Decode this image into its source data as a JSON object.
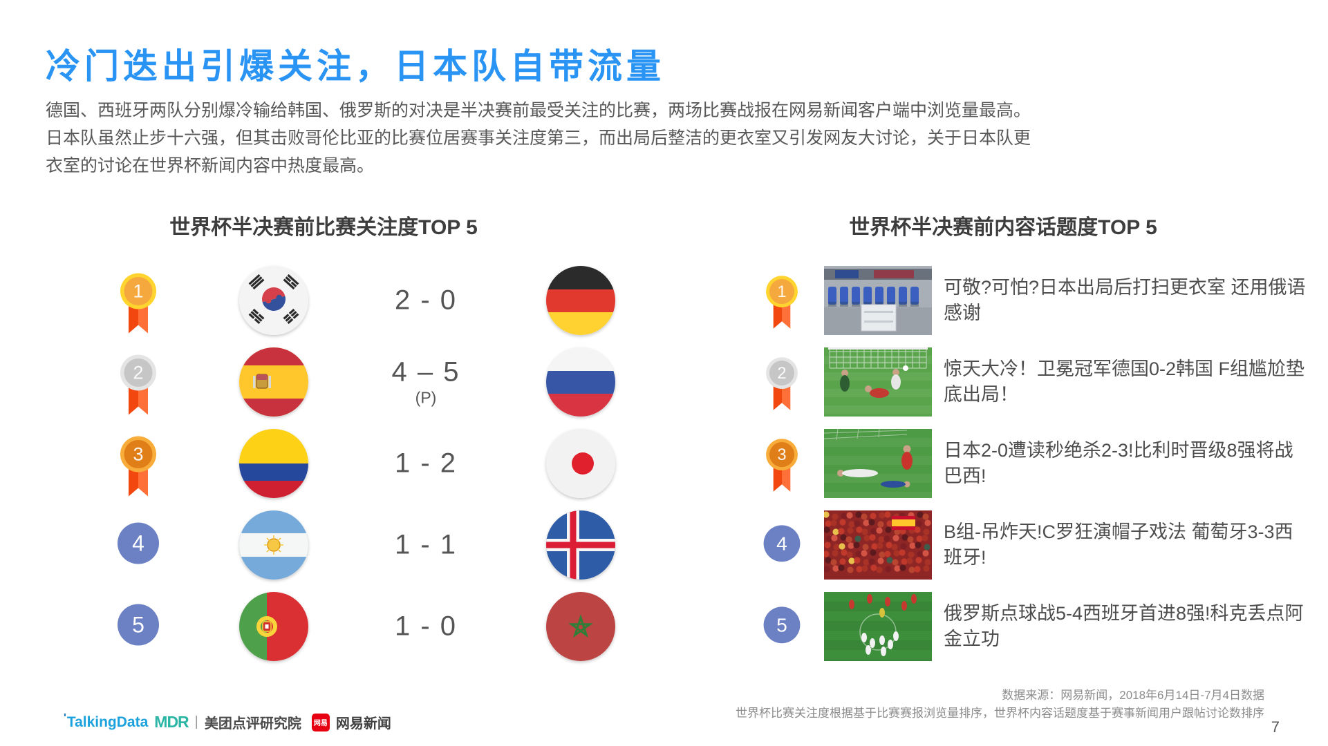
{
  "slide": {
    "title": "冷门迭出引爆关注，日本队自带流量",
    "paragraph": "德国、西班牙两队分别爆冷输给韩国、俄罗斯的对决是半决赛前最受关注的比赛，两场比赛战报在网易新闻客户端中浏览量最高。日本队虽然止步十六强，但其击败哥伦比亚的比赛位居赛事关注度第三，而出局后整洁的更衣室又引发网友大讨论，关于日本队更衣室的讨论在世界杯新闻内容中热度最高。",
    "page_number": "7"
  },
  "match_panel": {
    "title": "世界杯半决赛前比赛关注度TOP 5",
    "rows": [
      {
        "rank": "1",
        "rank_style": "gold",
        "team_a": "south-korea",
        "score": "2 - 0",
        "score_note": "",
        "team_b": "germany"
      },
      {
        "rank": "2",
        "rank_style": "silver",
        "team_a": "spain",
        "score": "4 – 5",
        "score_note": "(P)",
        "team_b": "russia"
      },
      {
        "rank": "3",
        "rank_style": "bronze",
        "team_a": "colombia",
        "score": "1 - 2",
        "score_note": "",
        "team_b": "japan"
      },
      {
        "rank": "4",
        "rank_style": "plain",
        "team_a": "argentina",
        "score": "1 - 1",
        "score_note": "",
        "team_b": "iceland"
      },
      {
        "rank": "5",
        "rank_style": "plain",
        "team_a": "portugal",
        "score": "1 - 0",
        "score_note": "",
        "team_b": "morocco"
      }
    ]
  },
  "topic_panel": {
    "title": "世界杯半决赛前内容话题度TOP 5",
    "rows": [
      {
        "rank": "1",
        "rank_style": "gold",
        "photo": "locker-room",
        "headline": "可敬?可怕?日本出局后打扫更衣室 还用俄语感谢"
      },
      {
        "rank": "2",
        "rank_style": "silver",
        "photo": "goal-upset",
        "headline": "惊天大冷！卫冕冠军德国0-2韩国 F组尴尬垫底出局！"
      },
      {
        "rank": "3",
        "rank_style": "bronze",
        "photo": "last-second-goal",
        "headline": "日本2-0遭读秒绝杀2-3!比利时晋级8强将战巴西!"
      },
      {
        "rank": "4",
        "rank_style": "plain",
        "photo": "red-crowd",
        "headline": "B组-吊炸天!C罗狂演帽子戏法 葡萄牙3-3西班牙!"
      },
      {
        "rank": "5",
        "rank_style": "plain",
        "photo": "penalty-celebration",
        "headline": "俄罗斯点球战5-4西班牙首进8强!科克丢点阿金立功"
      }
    ]
  },
  "footer": {
    "source_line_1": "数据来源：网易新闻，2018年6月14日-7月4日数据",
    "source_line_2": "世界杯比赛关注度根据基于比赛赛报浏览量排序，世界杯内容话题度基于赛事新闻用户跟帖讨论数排序",
    "logos": {
      "talkingdata": "TalkingData",
      "mdr": "MDR",
      "meituan": "美团点评研究院",
      "netease_badge": "网易",
      "netease": "网易新闻"
    }
  },
  "colors": {
    "title_blue": "#2A94F4",
    "body_text": "#575757",
    "heading_text": "#3d3d3d",
    "rank_plain_blue": "#6C80C4",
    "medal_gold_ring": "#FFD42E",
    "medal_gold_fill": "#F5A83D",
    "medal_silver_ring": "#E4E4E4",
    "medal_silver_fill": "#C6C6C6",
    "medal_bronze_ring": "#F8AC3A",
    "medal_bronze_fill": "#E07F18",
    "ribbon_orange": "#FF7038",
    "talkingdata_blue": "#1BA1DC",
    "netease_red": "#E60012"
  }
}
